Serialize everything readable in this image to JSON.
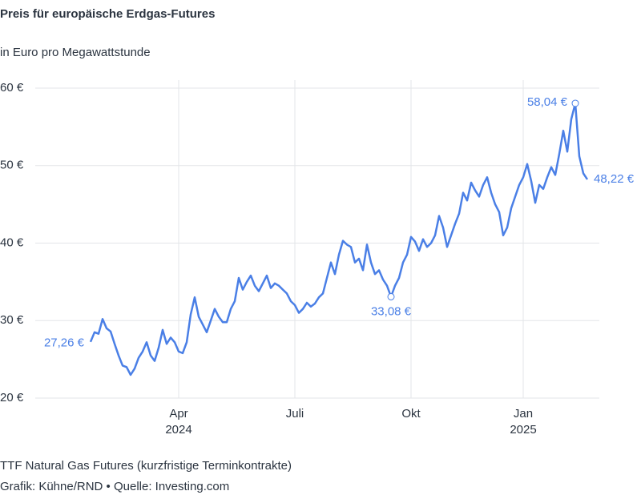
{
  "chart_data": {
    "type": "line",
    "title": "Preis für europäische Erdgas-Futures",
    "subtitle": "in Euro pro Megawattstunde",
    "note": "TTF Natural Gas Futures (kurzfristige Terminkontrakte)",
    "source": "Grafik: Kühne/RND • Quelle: Investing.com",
    "color": "#4a7fe6",
    "grid": true,
    "ylim": [
      20,
      60
    ],
    "yticks": [
      {
        "value": 20,
        "label": "20 €"
      },
      {
        "value": 30,
        "label": "30 €"
      },
      {
        "value": 40,
        "label": "40 €"
      },
      {
        "value": 50,
        "label": "50 €"
      },
      {
        "value": 60,
        "label": "60 €"
      }
    ],
    "categories": [
      null,
      null,
      null,
      null,
      null,
      null,
      null,
      null,
      null,
      null,
      null,
      null,
      null,
      null,
      null,
      null,
      null,
      null,
      null,
      null,
      null,
      null,
      [
        "Apr",
        "2024"
      ],
      null,
      null,
      null,
      null,
      null,
      null,
      null,
      null,
      null,
      null,
      null,
      null,
      null,
      null,
      null,
      null,
      null,
      null,
      null,
      null,
      null,
      null,
      null,
      null,
      null,
      null,
      null,
      null,
      [
        "Juli"
      ],
      null,
      null,
      null,
      null,
      null,
      null,
      null,
      null,
      null,
      null,
      null,
      null,
      null,
      null,
      null,
      null,
      null,
      null,
      null,
      null,
      null,
      null,
      null,
      null,
      null,
      null,
      null,
      null,
      [
        "Okt"
      ],
      null,
      null,
      null,
      null,
      null,
      null,
      null,
      null,
      null,
      null,
      null,
      null,
      null,
      null,
      null,
      null,
      null,
      null,
      null,
      null,
      null,
      null,
      null,
      null,
      null,
      null,
      null,
      [
        "Jan",
        "2025"
      ],
      null,
      null,
      null,
      null,
      null,
      null,
      null,
      null,
      null,
      null,
      null,
      null,
      null,
      null,
      null,
      null
    ],
    "values": [
      27.26,
      28.5,
      28.3,
      30.2,
      29.0,
      28.6,
      27.0,
      25.5,
      24.2,
      24.0,
      23.0,
      23.8,
      25.2,
      26.0,
      27.2,
      25.5,
      24.8,
      26.5,
      28.8,
      27.0,
      27.8,
      27.2,
      26.0,
      25.8,
      27.2,
      30.8,
      33.0,
      30.5,
      29.5,
      28.5,
      30.0,
      31.5,
      30.5,
      29.8,
      29.8,
      31.5,
      32.5,
      35.5,
      34.0,
      35.0,
      35.8,
      34.5,
      33.8,
      34.8,
      35.8,
      34.2,
      34.8,
      34.5,
      34.0,
      33.5,
      32.5,
      32.0,
      31.0,
      31.5,
      32.3,
      31.8,
      32.2,
      33.0,
      33.5,
      35.5,
      37.5,
      36.0,
      38.5,
      40.3,
      39.8,
      39.5,
      37.5,
      38.0,
      36.5,
      39.8,
      37.5,
      36.0,
      36.5,
      35.3,
      34.5,
      33.08,
      34.5,
      35.5,
      37.5,
      38.5,
      40.8,
      40.2,
      39.0,
      40.5,
      39.5,
      40.0,
      41.0,
      43.5,
      42.0,
      39.5,
      41.0,
      42.5,
      43.8,
      46.5,
      45.5,
      47.8,
      46.8,
      46.0,
      47.5,
      48.5,
      46.5,
      45.0,
      44.0,
      41.0,
      42.0,
      44.5,
      46.0,
      47.5,
      48.5,
      50.2,
      48.0,
      45.2,
      47.5,
      47.0,
      48.5,
      49.8,
      48.8,
      51.5,
      54.5,
      51.8,
      56.0,
      58.04,
      51.2,
      49.0,
      48.22
    ],
    "value_labels": [
      "27,26 €",
      null,
      null,
      null,
      null,
      null,
      null,
      null,
      null,
      null,
      null,
      null,
      null,
      null,
      null,
      null,
      null,
      null,
      null,
      null,
      null,
      null,
      null,
      null,
      null,
      null,
      null,
      null,
      null,
      null,
      null,
      null,
      null,
      null,
      null,
      null,
      null,
      null,
      null,
      null,
      null,
      null,
      null,
      null,
      null,
      null,
      null,
      null,
      null,
      null,
      null,
      null,
      null,
      null,
      null,
      null,
      null,
      null,
      null,
      null,
      null,
      null,
      null,
      null,
      null,
      null,
      null,
      null,
      null,
      null,
      null,
      null,
      null,
      null,
      null,
      "33,08 €",
      null,
      null,
      null,
      null,
      null,
      null,
      null,
      null,
      null,
      null,
      null,
      null,
      null,
      null,
      null,
      null,
      null,
      null,
      null,
      null,
      null,
      null,
      null,
      null,
      null,
      null,
      null,
      null,
      null,
      null,
      null,
      null,
      null,
      null,
      null,
      null,
      null,
      null,
      null,
      null,
      null,
      null,
      null,
      null,
      null,
      "58,04 €",
      null,
      null,
      "48,22 €"
    ]
  }
}
